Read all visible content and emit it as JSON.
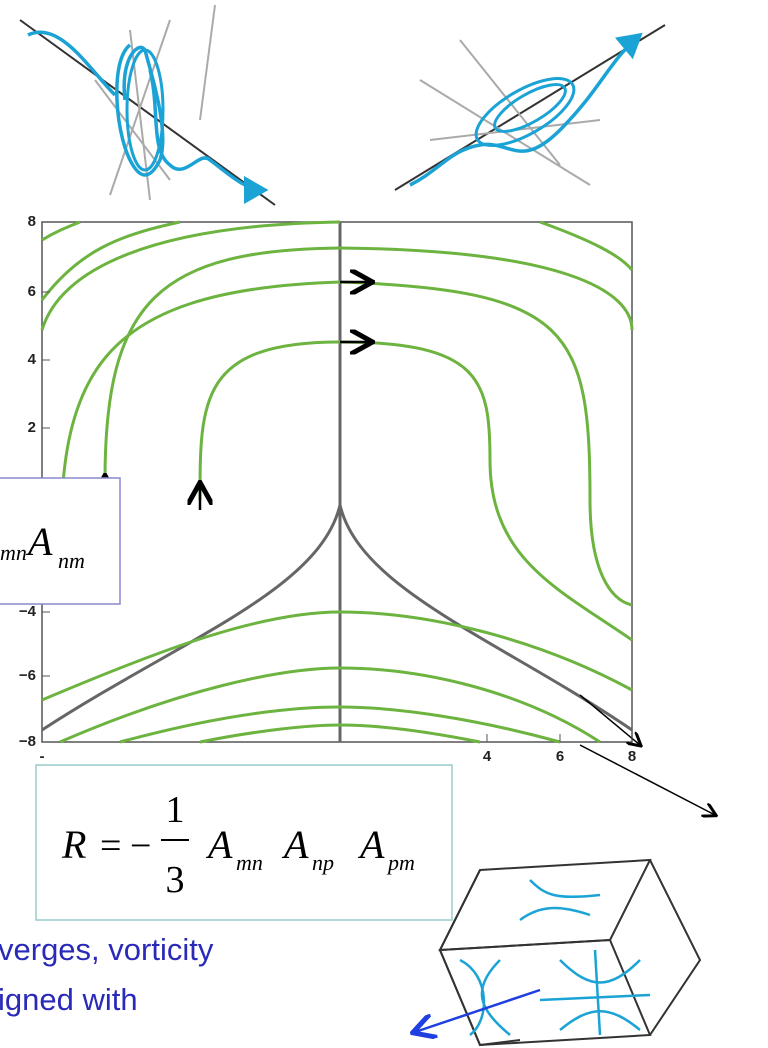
{
  "plot": {
    "yticks": [
      "8",
      "6",
      "4",
      "2",
      "−4",
      "−6",
      "−8"
    ],
    "xticks": [
      "-",
      "4",
      "6",
      "8"
    ]
  },
  "left_formula": {
    "sub1": "mn",
    "symbol": "A",
    "sub2": "nm"
  },
  "formula": {
    "lhs": "R",
    "equals": "=",
    "minus": "−",
    "numerator": "1",
    "denominator": "3",
    "terms": [
      [
        "A",
        "mn"
      ],
      [
        "A",
        "np"
      ],
      [
        "A",
        "pm"
      ]
    ]
  },
  "caption": [
    "verges, vorticity",
    "igned with"
  ]
}
